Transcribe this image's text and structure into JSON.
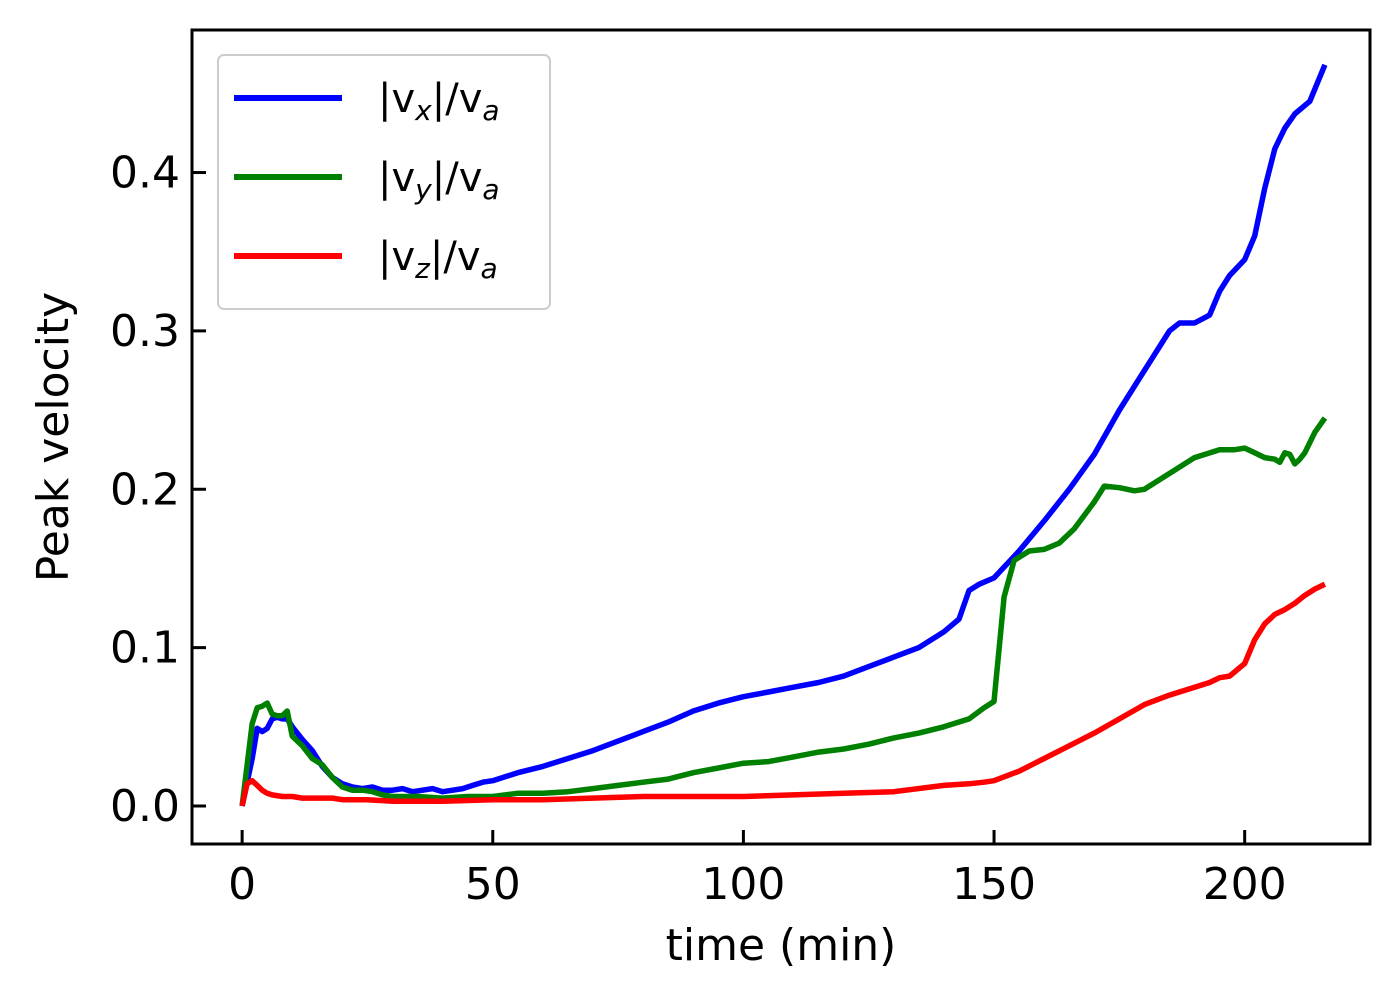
{
  "chart_data": {
    "type": "line",
    "xlabel": "time (min)",
    "ylabel": "Peak velocity",
    "xlim": [
      -10,
      225
    ],
    "ylim": [
      -0.024,
      0.49
    ],
    "xticks": [
      0,
      50,
      100,
      150,
      200
    ],
    "yticks": [
      0.0,
      0.1,
      0.2,
      0.3,
      0.4
    ],
    "xtick_labels": [
      "0",
      "50",
      "100",
      "150",
      "200"
    ],
    "ytick_labels": [
      "0.0",
      "0.1",
      "0.2",
      "0.3",
      "0.4"
    ],
    "grid": false,
    "legend_position": "top-left",
    "series": [
      {
        "name": "|v_x|/v_a",
        "name_parts": [
          "|v",
          "x",
          "|/v",
          "a"
        ],
        "color": "#0000ff",
        "x": [
          0,
          2,
          3,
          4,
          5,
          6,
          7,
          8,
          9,
          10,
          12,
          14,
          16,
          18,
          20,
          22,
          24,
          26,
          28,
          30,
          32,
          34,
          36,
          38,
          40,
          42,
          44,
          46,
          48,
          50,
          55,
          60,
          65,
          70,
          75,
          80,
          85,
          90,
          95,
          100,
          105,
          110,
          115,
          120,
          125,
          130,
          135,
          140,
          143,
          145,
          147,
          150,
          155,
          160,
          165,
          170,
          175,
          180,
          185,
          187,
          190,
          193,
          195,
          197,
          200,
          202,
          204,
          206,
          208,
          210,
          213,
          216
        ],
        "y": [
          0.0,
          0.03,
          0.049,
          0.047,
          0.049,
          0.055,
          0.056,
          0.055,
          0.055,
          0.05,
          0.042,
          0.035,
          0.025,
          0.018,
          0.014,
          0.012,
          0.011,
          0.012,
          0.01,
          0.01,
          0.011,
          0.009,
          0.01,
          0.011,
          0.009,
          0.01,
          0.011,
          0.013,
          0.015,
          0.016,
          0.021,
          0.025,
          0.03,
          0.035,
          0.041,
          0.047,
          0.053,
          0.06,
          0.065,
          0.069,
          0.072,
          0.075,
          0.078,
          0.082,
          0.088,
          0.094,
          0.1,
          0.11,
          0.118,
          0.136,
          0.14,
          0.144,
          0.161,
          0.18,
          0.2,
          0.222,
          0.25,
          0.275,
          0.3,
          0.305,
          0.305,
          0.31,
          0.325,
          0.335,
          0.345,
          0.36,
          0.39,
          0.415,
          0.428,
          0.437,
          0.445,
          0.468
        ]
      },
      {
        "name": "|v_y|/v_a",
        "name_parts": [
          "|v",
          "y",
          "|/v",
          "a"
        ],
        "color": "#008000",
        "x": [
          0,
          2,
          3,
          4,
          5,
          6,
          7,
          8,
          9,
          10,
          12,
          14,
          16,
          18,
          20,
          22,
          24,
          26,
          28,
          30,
          35,
          40,
          45,
          50,
          55,
          60,
          65,
          70,
          75,
          80,
          85,
          90,
          95,
          100,
          105,
          110,
          115,
          120,
          125,
          130,
          135,
          140,
          145,
          148,
          150,
          152,
          154,
          157,
          160,
          163,
          166,
          170,
          172,
          175,
          178,
          180,
          185,
          190,
          195,
          198,
          200,
          202,
          204,
          206,
          207,
          208,
          209,
          210,
          211,
          212,
          214,
          216
        ],
        "y": [
          0.0,
          0.052,
          0.062,
          0.063,
          0.065,
          0.058,
          0.057,
          0.057,
          0.06,
          0.044,
          0.038,
          0.03,
          0.026,
          0.018,
          0.012,
          0.01,
          0.01,
          0.009,
          0.007,
          0.006,
          0.006,
          0.005,
          0.006,
          0.006,
          0.008,
          0.008,
          0.009,
          0.011,
          0.013,
          0.015,
          0.017,
          0.021,
          0.024,
          0.027,
          0.028,
          0.031,
          0.034,
          0.036,
          0.039,
          0.043,
          0.046,
          0.05,
          0.055,
          0.062,
          0.066,
          0.132,
          0.155,
          0.161,
          0.162,
          0.166,
          0.175,
          0.192,
          0.202,
          0.201,
          0.199,
          0.2,
          0.21,
          0.22,
          0.225,
          0.225,
          0.226,
          0.223,
          0.22,
          0.219,
          0.217,
          0.223,
          0.222,
          0.216,
          0.219,
          0.223,
          0.236,
          0.245
        ]
      },
      {
        "name": "|v_z|/v_a",
        "name_parts": [
          "|v",
          "z",
          "|/v",
          "a"
        ],
        "color": "#ff0000",
        "x": [
          0,
          1,
          2,
          3,
          4,
          5,
          6,
          8,
          10,
          12,
          14,
          16,
          18,
          20,
          25,
          30,
          40,
          50,
          60,
          70,
          80,
          90,
          100,
          110,
          120,
          130,
          140,
          145,
          148,
          150,
          155,
          160,
          165,
          170,
          175,
          180,
          185,
          190,
          193,
          195,
          197,
          200,
          202,
          204,
          206,
          208,
          210,
          212,
          214,
          216
        ],
        "y": [
          0.0,
          0.014,
          0.016,
          0.013,
          0.01,
          0.008,
          0.007,
          0.006,
          0.006,
          0.005,
          0.005,
          0.005,
          0.005,
          0.004,
          0.004,
          0.003,
          0.003,
          0.004,
          0.004,
          0.005,
          0.006,
          0.006,
          0.006,
          0.007,
          0.008,
          0.009,
          0.013,
          0.014,
          0.015,
          0.016,
          0.022,
          0.03,
          0.038,
          0.046,
          0.055,
          0.064,
          0.07,
          0.075,
          0.078,
          0.081,
          0.082,
          0.09,
          0.105,
          0.115,
          0.121,
          0.124,
          0.128,
          0.133,
          0.137,
          0.14
        ]
      }
    ]
  }
}
